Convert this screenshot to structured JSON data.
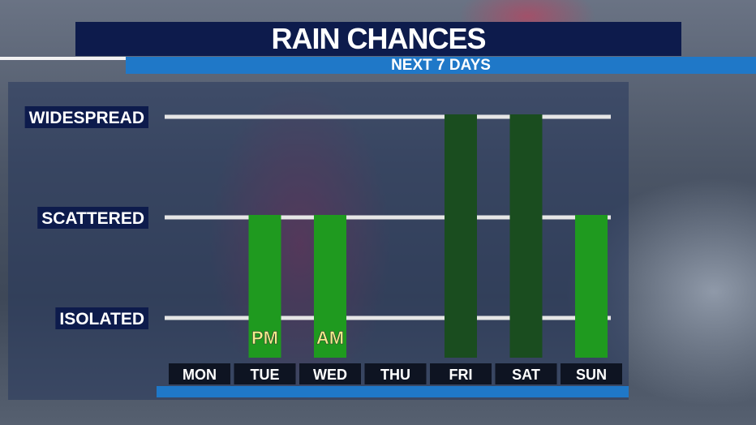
{
  "header": {
    "title": "RAIN CHANCES",
    "subtitle": "NEXT 7 DAYS"
  },
  "chart_data": {
    "type": "bar",
    "title": "RAIN CHANCES",
    "subtitle": "NEXT 7 DAYS",
    "categories": [
      "MON",
      "TUE",
      "WED",
      "THU",
      "FRI",
      "SAT",
      "SUN"
    ],
    "values": [
      0,
      2,
      2,
      0,
      3,
      3,
      2
    ],
    "y_levels": [
      {
        "value": 1,
        "label": "ISOLATED"
      },
      {
        "value": 2,
        "label": "SCATTERED"
      },
      {
        "value": 3,
        "label": "WIDESPREAD"
      }
    ],
    "ylim": [
      0,
      3
    ],
    "grid": true,
    "bar_colors": [
      "#1f9a1f",
      "#1f9a1f",
      "#1f9a1f",
      "#1f9a1f",
      "#1a4d1f",
      "#1a4d1f",
      "#1f9a1f"
    ],
    "annotations": [
      {
        "category": "TUE",
        "text": "PM"
      },
      {
        "category": "WED",
        "text": "AM"
      }
    ],
    "annotation_color": "#f2f08a",
    "xlabel": "",
    "ylabel": ""
  }
}
